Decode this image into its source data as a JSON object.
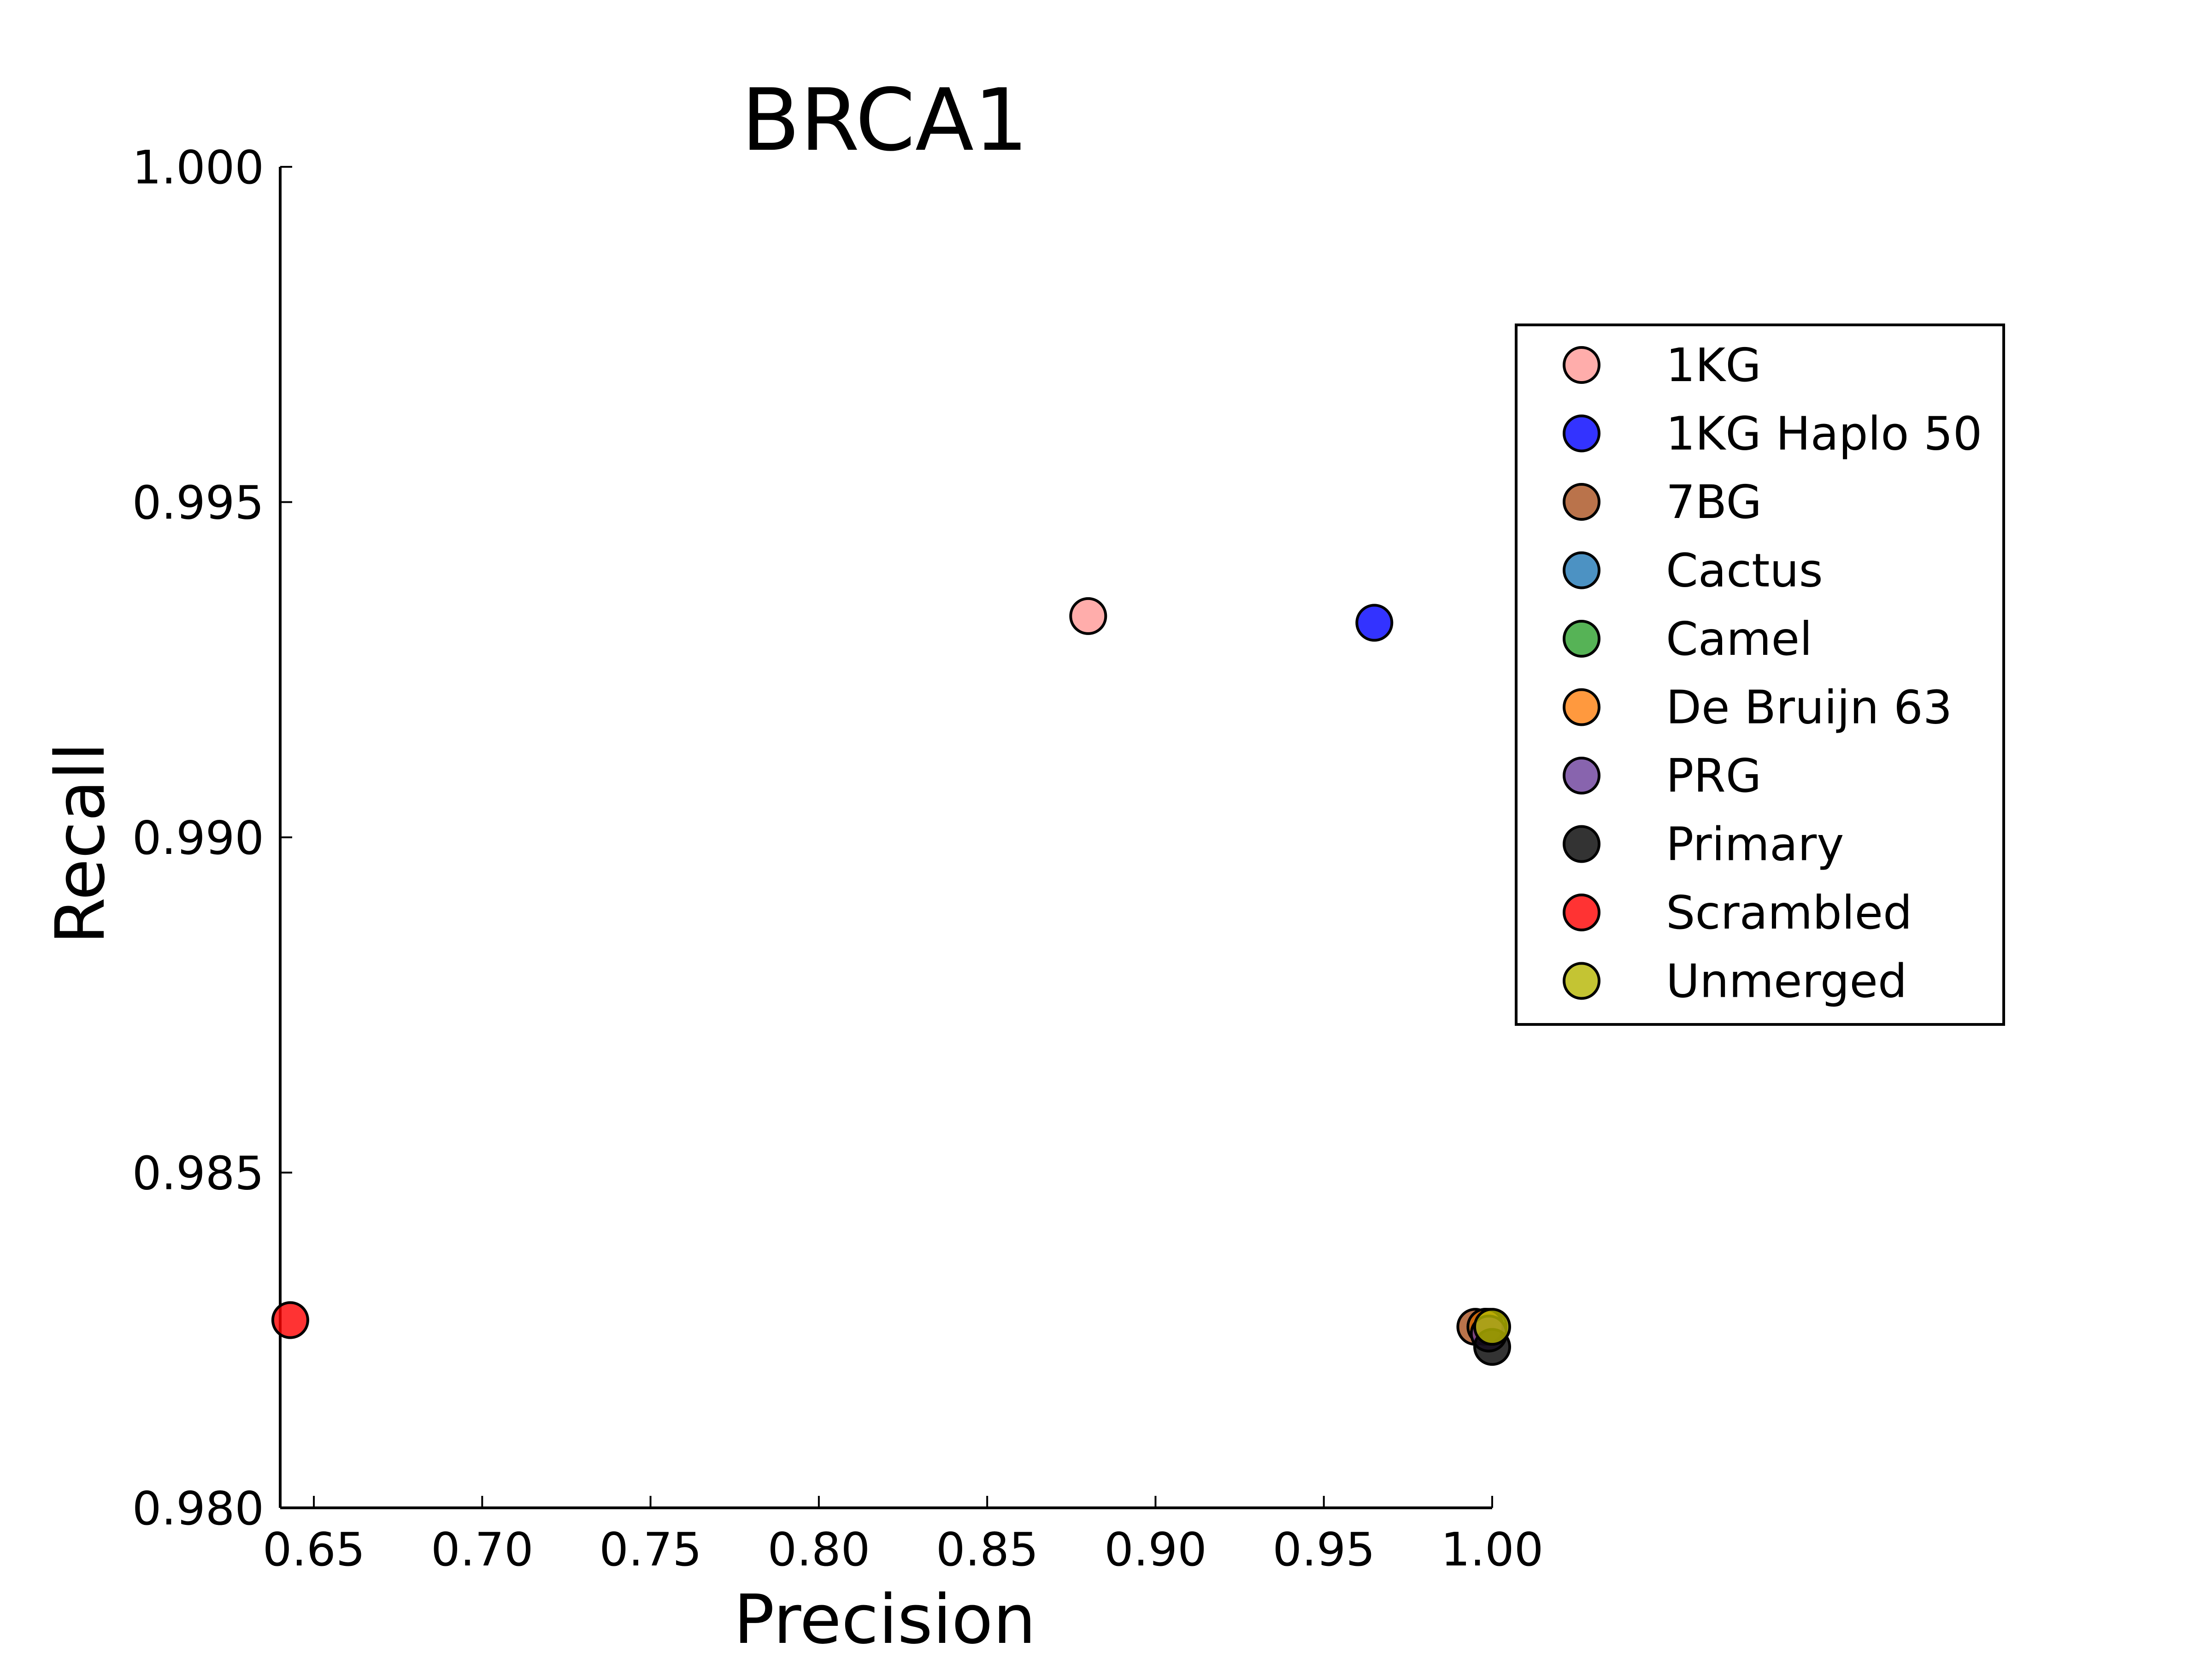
{
  "chart_data": {
    "type": "scatter",
    "title": "BRCA1",
    "xlabel": "Precision",
    "ylabel": "Recall",
    "xlim": [
      0.64,
      1.0
    ],
    "ylim": [
      0.98,
      1.0
    ],
    "xticks": [
      "0.65",
      "0.70",
      "0.75",
      "0.80",
      "0.85",
      "0.90",
      "0.95",
      "1.00"
    ],
    "xtick_values": [
      0.65,
      0.7,
      0.75,
      0.8,
      0.85,
      0.9,
      0.95,
      1.0
    ],
    "yticks": [
      "0.980",
      "0.985",
      "0.990",
      "0.995",
      "1.000"
    ],
    "ytick_values": [
      0.98,
      0.985,
      0.99,
      0.995,
      1.0
    ],
    "grid": false,
    "legend_position": "right",
    "series": [
      {
        "name": "1KG",
        "color": "#ff9896",
        "x": [
          0.88
        ],
        "y": [
          0.9933
        ]
      },
      {
        "name": "1KG Haplo 50",
        "color": "#0000ff",
        "x": [
          0.965
        ],
        "y": [
          0.9932
        ]
      },
      {
        "name": "7BG",
        "color": "#a9501e",
        "x": [
          0.995
        ],
        "y": [
          0.9827
        ]
      },
      {
        "name": "Cactus",
        "color": "#1f77b4",
        "x": [
          0.998
        ],
        "y": [
          0.9827
        ]
      },
      {
        "name": "Camel",
        "color": "#2ca02c",
        "x": [
          0.999
        ],
        "y": [
          0.9827
        ]
      },
      {
        "name": "De Bruijn 63",
        "color": "#ff7f0e",
        "x": [
          0.998
        ],
        "y": [
          0.9827
        ]
      },
      {
        "name": "PRG",
        "color": "#6a3d9a",
        "x": [
          0.999
        ],
        "y": [
          0.9826
        ]
      },
      {
        "name": "Primary",
        "color": "#000000",
        "x": [
          1.0
        ],
        "y": [
          0.9824
        ]
      },
      {
        "name": "Scrambled",
        "color": "#ff0000",
        "x": [
          0.643
        ],
        "y": [
          0.9828
        ]
      },
      {
        "name": "Unmerged",
        "color": "#b5b500",
        "x": [
          1.0
        ],
        "y": [
          0.9827
        ]
      }
    ]
  }
}
